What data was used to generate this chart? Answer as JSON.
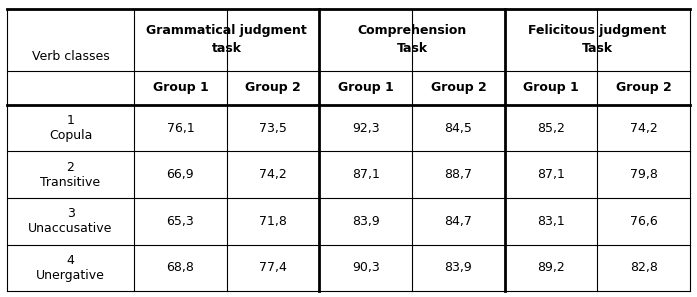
{
  "col_headers_level1_texts": [
    "Verb classes",
    "Grammatical judgment\ntask",
    "Comprehension\nTask",
    "Felicitous judgment\nTask"
  ],
  "col_headers_level2": [
    "Group 1",
    "Group 2",
    "Group 1",
    "Group 2",
    "Group 1",
    "Group 2"
  ],
  "rows": [
    [
      "1\nCopula",
      "76,1",
      "73,5",
      "92,3",
      "84,5",
      "85,2",
      "74,2"
    ],
    [
      "2\nTransitive",
      "66,9",
      "74,2",
      "87,1",
      "88,7",
      "87,1",
      "79,8"
    ],
    [
      "3\nUnaccusative",
      "65,3",
      "71,8",
      "83,9",
      "84,7",
      "83,1",
      "76,6"
    ],
    [
      "4\nUnergative",
      "68,8",
      "77,4",
      "90,3",
      "83,9",
      "89,2",
      "82,8"
    ]
  ],
  "background_color": "#ffffff",
  "font_size": 9,
  "header_font_size": 9,
  "thin_lw": 0.8,
  "thick_lw": 2.0
}
